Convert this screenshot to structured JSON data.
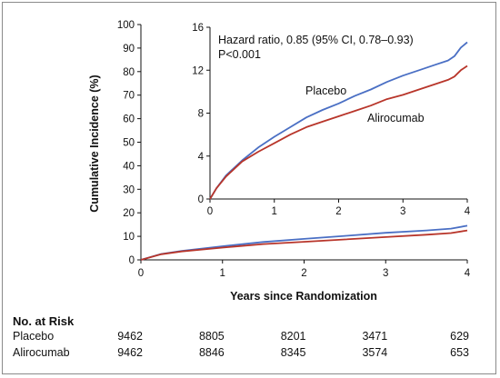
{
  "chart_data": {
    "type": "line",
    "xlabel": "Years since Randomization",
    "ylabel": "Cumulative Incidence (%)",
    "main": {
      "xlim": [
        0,
        4
      ],
      "ylim": [
        0,
        100
      ],
      "x_ticks": [
        "0",
        "1",
        "2",
        "3",
        "4"
      ],
      "y_ticks": [
        "0",
        "10",
        "20",
        "30",
        "40",
        "50",
        "60",
        "70",
        "80",
        "90",
        "100"
      ],
      "series": [
        {
          "name": "Placebo",
          "color": "#4a6fc4",
          "x": [
            0,
            0.25,
            0.5,
            1,
            1.5,
            2,
            2.5,
            3,
            3.5,
            3.8,
            4
          ],
          "y": [
            0,
            2.5,
            3.8,
            5.8,
            7.6,
            8.9,
            10.2,
            11.5,
            12.5,
            13.3,
            14.5
          ]
        },
        {
          "name": "Alirocumab",
          "color": "#b8352a",
          "x": [
            0,
            0.25,
            0.5,
            1,
            1.5,
            2,
            2.5,
            3,
            3.5,
            3.8,
            4
          ],
          "y": [
            0,
            2.4,
            3.6,
            5.2,
            6.7,
            7.7,
            8.7,
            9.7,
            10.7,
            11.4,
            12.5
          ]
        }
      ]
    },
    "inset": {
      "xlim": [
        0,
        4
      ],
      "ylim": [
        0,
        16
      ],
      "x_ticks": [
        "0",
        "1",
        "2",
        "3",
        "4"
      ],
      "y_ticks": [
        "0",
        "4",
        "8",
        "12",
        "16"
      ],
      "annotation_lines": [
        "Hazard ratio, 0.85 (95% CI, 0.78–0.93)",
        "P<0.001"
      ],
      "series_labels": [
        "Placebo",
        "Alirocumab"
      ],
      "series": [
        {
          "name": "Placebo",
          "color": "#4a6fc4",
          "x": [
            0,
            0.1,
            0.25,
            0.5,
            0.75,
            1,
            1.25,
            1.5,
            1.75,
            2,
            2.25,
            2.5,
            2.75,
            3,
            3.25,
            3.5,
            3.7,
            3.8,
            3.9,
            4
          ],
          "y": [
            0,
            1.0,
            2.2,
            3.6,
            4.8,
            5.8,
            6.7,
            7.6,
            8.3,
            8.9,
            9.6,
            10.2,
            10.9,
            11.5,
            12.0,
            12.5,
            12.9,
            13.3,
            14.1,
            14.6
          ]
        },
        {
          "name": "Alirocumab",
          "color": "#b8352a",
          "x": [
            0,
            0.1,
            0.25,
            0.5,
            0.75,
            1,
            1.25,
            1.5,
            1.75,
            2,
            2.25,
            2.5,
            2.75,
            3,
            3.25,
            3.5,
            3.7,
            3.8,
            3.9,
            4
          ],
          "y": [
            0,
            1.0,
            2.1,
            3.5,
            4.4,
            5.2,
            6.0,
            6.7,
            7.2,
            7.7,
            8.2,
            8.7,
            9.3,
            9.7,
            10.2,
            10.7,
            11.1,
            11.4,
            12.0,
            12.4
          ]
        }
      ]
    },
    "risk_table": {
      "heading": "No. at Risk",
      "rows": [
        {
          "label": "Placebo",
          "values": [
            "9462",
            "8805",
            "8201",
            "3471",
            "629"
          ]
        },
        {
          "label": "Alirocumab",
          "values": [
            "9462",
            "8846",
            "8345",
            "3574",
            "653"
          ]
        }
      ]
    }
  }
}
